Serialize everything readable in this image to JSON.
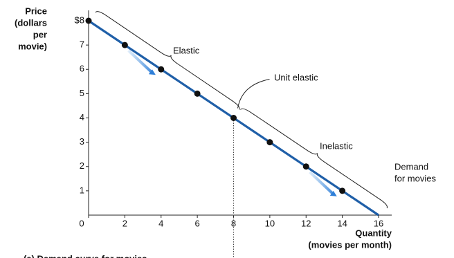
{
  "chart_data": {
    "type": "line",
    "y_label_lines": [
      "Price",
      "(dollars",
      "per",
      "movie)"
    ],
    "x_label_lines": [
      "Quantity",
      "(movies per month)"
    ],
    "caption": "(a) Demand curve for movies",
    "xlim": [
      0,
      16
    ],
    "ylim": [
      0,
      8
    ],
    "xticks": [
      0,
      2,
      4,
      6,
      8,
      10,
      12,
      14,
      16
    ],
    "yticks": [
      1,
      2,
      3,
      4,
      5,
      6,
      7,
      {
        "value": 8,
        "label": "$8"
      }
    ],
    "line": {
      "name": "Demand for movies",
      "name_lines": [
        "Demand",
        "for movies"
      ],
      "color": "#1f5fa8",
      "x": [
        0,
        16
      ],
      "values": [
        8,
        0
      ]
    },
    "points": {
      "color": "#111111",
      "x": [
        0,
        2,
        4,
        6,
        8,
        10,
        12,
        14
      ],
      "y": [
        8,
        7,
        6,
        5,
        4,
        3,
        2,
        1
      ]
    },
    "annotations": {
      "elastic": "Elastic",
      "unit_elastic": "Unit elastic",
      "inelastic": "Inelastic"
    }
  }
}
